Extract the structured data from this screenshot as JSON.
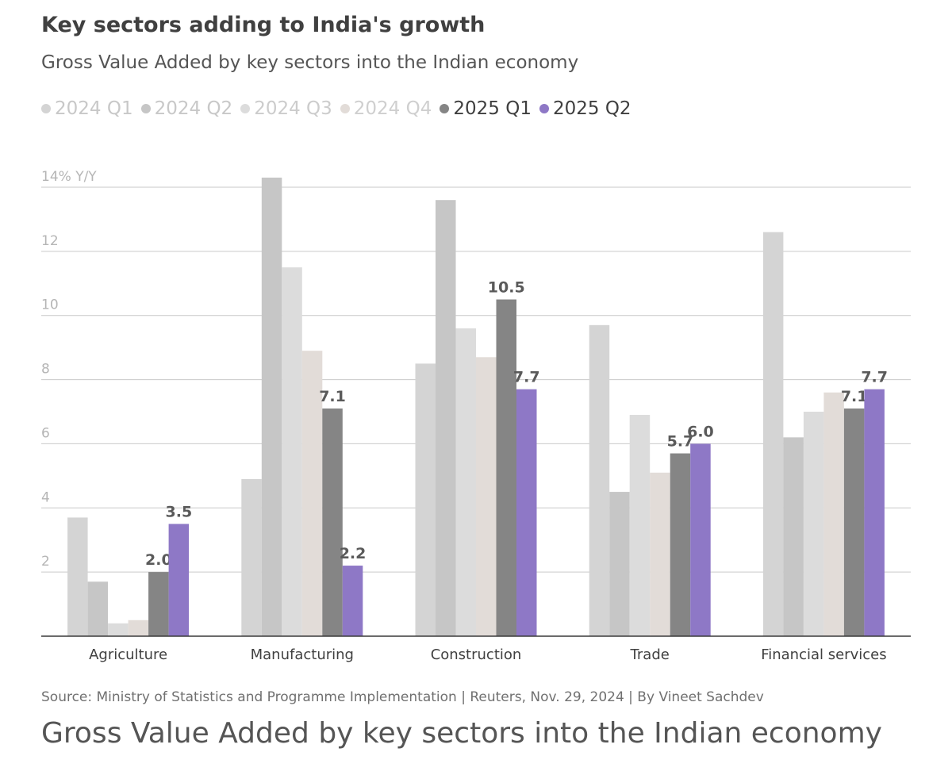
{
  "title": "Key sectors adding to India's growth",
  "subtitle": "Gross Value Added by key sectors into the Indian economy",
  "legend": [
    {
      "label": "2024 Q1",
      "color": "#d4d4d4",
      "text_color": "#c8c8c8"
    },
    {
      "label": "2024 Q2",
      "color": "#c6c6c6",
      "text_color": "#c8c8c8"
    },
    {
      "label": "2024 Q3",
      "color": "#dcdcdc",
      "text_color": "#cccccc"
    },
    {
      "label": "2024 Q4",
      "color": "#e2dcd8",
      "text_color": "#cfcfcf"
    },
    {
      "label": "2025 Q1",
      "color": "#858585",
      "text_color": "#3f3f3f"
    },
    {
      "label": "2025 Q2",
      "color": "#8e78c6",
      "text_color": "#3f3f3f"
    }
  ],
  "chart_data": {
    "type": "bar",
    "title": "Key sectors adding to India's growth",
    "ylabel": "14% Y/Y",
    "ylim": [
      0,
      14
    ],
    "yticks": [
      2,
      4,
      6,
      8,
      10,
      12,
      14
    ],
    "ytick_labels": [
      "2",
      "4",
      "6",
      "8",
      "10",
      "12",
      "14% Y/Y"
    ],
    "grid": true,
    "categories": [
      "Agriculture",
      "Manufacturing",
      "Construction",
      "Trade",
      "Financial services"
    ],
    "series": [
      {
        "name": "2024 Q1",
        "color": "#d4d4d4",
        "values": [
          3.7,
          4.9,
          8.5,
          9.7,
          12.6
        ]
      },
      {
        "name": "2024 Q2",
        "color": "#c6c6c6",
        "values": [
          1.7,
          14.3,
          13.6,
          4.5,
          6.2
        ]
      },
      {
        "name": "2024 Q3",
        "color": "#dcdcdc",
        "values": [
          0.4,
          11.5,
          9.6,
          6.9,
          7.0
        ]
      },
      {
        "name": "2024 Q4",
        "color": "#e2dcd8",
        "values": [
          0.5,
          8.9,
          8.7,
          5.1,
          7.6
        ]
      },
      {
        "name": "2025 Q1",
        "color": "#858585",
        "values": [
          2.0,
          7.1,
          10.5,
          5.7,
          7.1
        ]
      },
      {
        "name": "2025 Q2",
        "color": "#8e78c6",
        "values": [
          3.5,
          2.2,
          7.7,
          6.0,
          7.7
        ]
      }
    ],
    "labeled_series": [
      "2025 Q1",
      "2025 Q2"
    ],
    "data_labels": {
      "2025 Q1": [
        "2.0",
        "7.1",
        "10.5",
        "5.7",
        "7.1"
      ],
      "2025 Q2": [
        "3.5",
        "2.2",
        "7.7",
        "6.0",
        "7.7"
      ]
    }
  },
  "footnote": "Source: Ministry of Statistics and Programme Implementation | Reuters, Nov. 29, 2024 | By Vineet Sachdev",
  "caption": "Gross Value Added by key sectors into the Indian economy"
}
